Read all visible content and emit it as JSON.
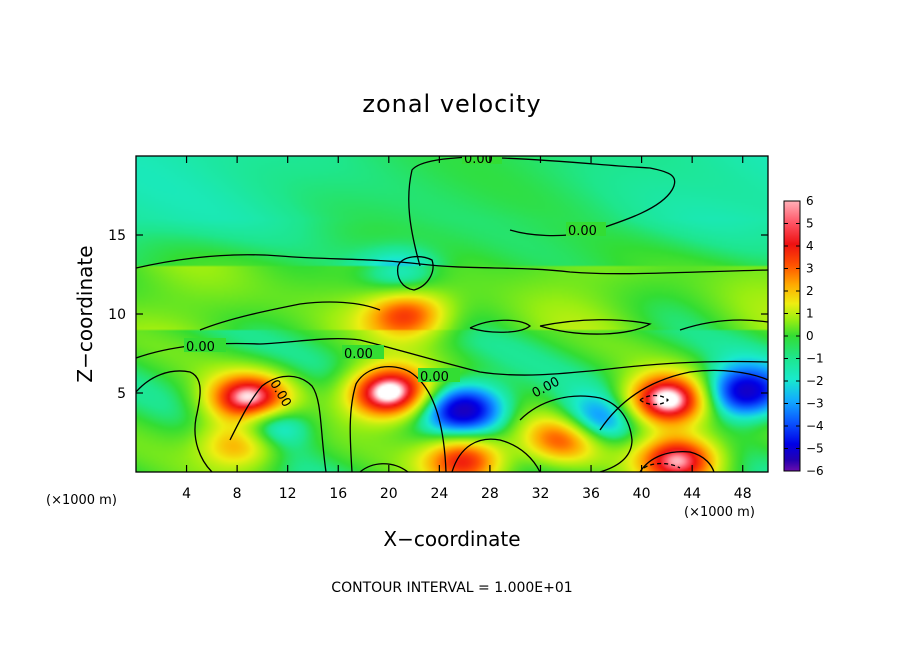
{
  "chart_data": {
    "type": "heatmap",
    "title": "zonal velocity",
    "xlabel": "X−coordinate",
    "ylabel": "Z−coordinate",
    "x_unit": "(×1000 m)",
    "z_unit": "(×1000 m)",
    "xlim": [
      0,
      50
    ],
    "ylim": [
      0,
      20
    ],
    "x_ticks": [
      4,
      8,
      12,
      16,
      20,
      24,
      28,
      32,
      36,
      40,
      44,
      48
    ],
    "y_ticks": [
      5,
      10,
      15
    ],
    "colorbar": {
      "ticks": [
        6,
        5,
        4,
        3,
        2,
        1,
        0,
        -1,
        -2,
        -3,
        -4,
        -5,
        -6
      ],
      "tick_labels": [
        "6",
        "5",
        "4",
        "3",
        "2",
        "1",
        "0",
        "−1",
        "−2",
        "−3",
        "−4",
        "−5",
        "−6"
      ],
      "range": [
        -6,
        6
      ],
      "colors": [
        "#6a0dad",
        "#2400b0",
        "#0000e6",
        "#0a55ff",
        "#12aaff",
        "#19eacc",
        "#1ee68c",
        "#33dd33",
        "#99ee11",
        "#eeee11",
        "#ffaa00",
        "#ff5500",
        "#ee1111",
        "#ff5566",
        "#ffb0b8",
        "#ffffff"
      ]
    },
    "features": [
      {
        "x": 9,
        "z": 4.5,
        "sign": "positive",
        "strength": 7
      },
      {
        "x": 20,
        "z": 5,
        "sign": "positive",
        "strength": 7.5
      },
      {
        "x": 8.5,
        "z": 2,
        "sign": "positive",
        "strength": 5
      },
      {
        "x": 34,
        "z": 2.2,
        "sign": "positive",
        "strength": 5
      },
      {
        "x": 42,
        "z": 4.5,
        "sign": "positive",
        "strength": 7
      },
      {
        "x": 43,
        "z": 0.8,
        "sign": "positive",
        "strength": 6
      },
      {
        "x": 26,
        "z": 0.8,
        "sign": "positive",
        "strength": 5
      },
      {
        "x": 21.5,
        "z": 10,
        "sign": "positive",
        "strength": 4
      },
      {
        "x": 10,
        "z": 3,
        "sign": "negative",
        "strength": 5
      },
      {
        "x": 26,
        "z": 4,
        "sign": "negative",
        "strength": 5
      },
      {
        "x": 36,
        "z": 3,
        "sign": "negative",
        "strength": 4
      },
      {
        "x": 48,
        "z": 5,
        "sign": "negative",
        "strength": 5
      },
      {
        "x": 21,
        "z": 12.5,
        "sign": "negative",
        "strength": 2
      }
    ],
    "contour_labels": [
      "0.00",
      "0.00",
      "0.00",
      "0.00",
      "0.00",
      "0.00",
      "0.00"
    ]
  },
  "footer": {
    "contour_interval": "CONTOUR INTERVAL = 1.000E+01"
  }
}
